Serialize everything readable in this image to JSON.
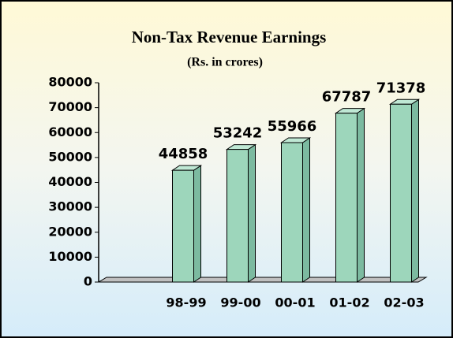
{
  "chart_data": {
    "type": "bar3d",
    "title": "Non-Tax Revenue Earnings",
    "subtitle": "(Rs. in crores)",
    "categories": [
      null,
      "98-99",
      "99-00",
      "00-01",
      "01-02",
      "02-03"
    ],
    "values": [
      null,
      44858,
      53242,
      55966,
      67787,
      71378
    ],
    "color": "#9dd6bb",
    "ylim": [
      0,
      80000
    ],
    "yticks": [
      0,
      10000,
      20000,
      30000,
      40000,
      50000,
      60000,
      70000,
      80000
    ]
  }
}
